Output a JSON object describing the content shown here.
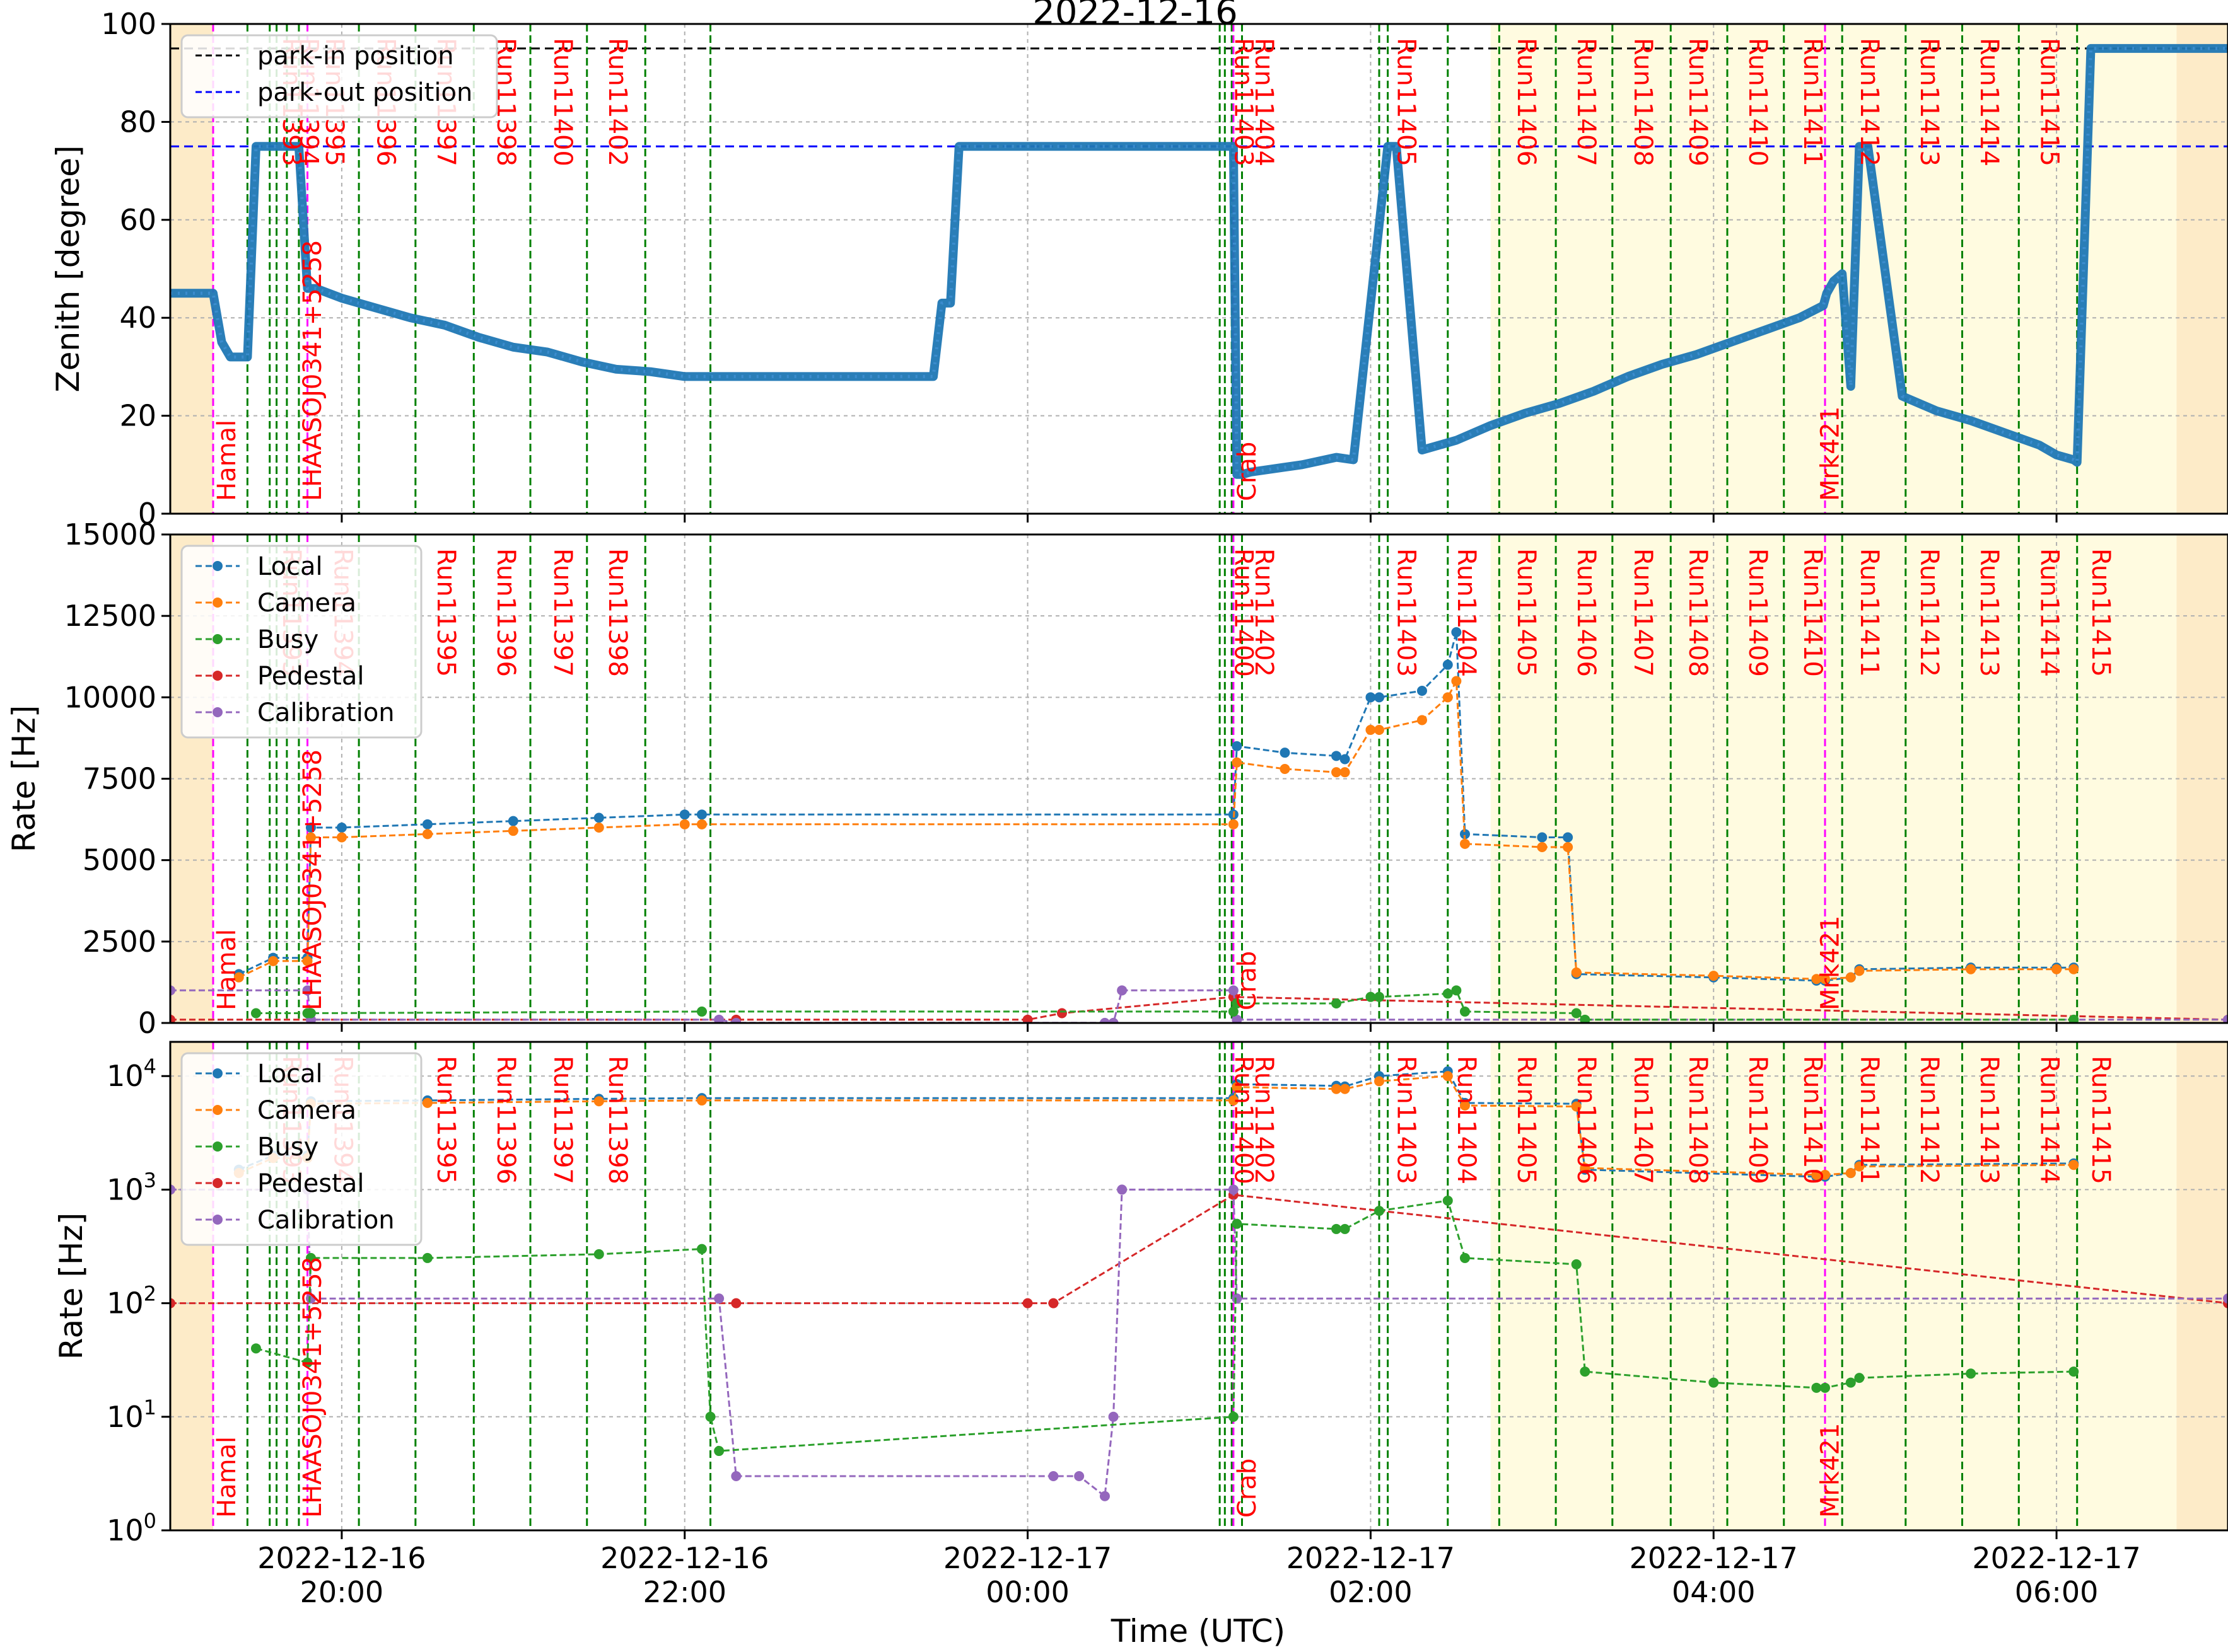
{
  "figure": {
    "title": "2022-12-16",
    "xlabel": "Time (UTC)",
    "xticks": [
      {
        "t": 20.0,
        "line1": "2022-12-16",
        "line2": "20:00"
      },
      {
        "t": 22.0,
        "line1": "2022-12-16",
        "line2": "22:00"
      },
      {
        "t": 24.0,
        "line1": "2022-12-17",
        "line2": "00:00"
      },
      {
        "t": 26.0,
        "line1": "2022-12-17",
        "line2": "02:00"
      },
      {
        "t": 28.0,
        "line1": "2022-12-17",
        "line2": "04:00"
      },
      {
        "t": 30.0,
        "line1": "2022-12-17",
        "line2": "06:00"
      }
    ],
    "colors": {
      "local": "#1f77b4",
      "camera": "#ff7f0e",
      "busy": "#2ca02c",
      "pedestal": "#d62728",
      "calibration": "#9467bd",
      "park_in": "#000000",
      "park_out": "#0000ff",
      "run_line": "#008000",
      "source_line": "#ff00ff",
      "run_label": "#ff0000",
      "night_shade": "#fdebc8",
      "moon_shade": "#fffbe0"
    }
  },
  "chart_data": [
    {
      "type": "line",
      "panel": "zenith",
      "ylabel": "Zenith [degree]",
      "ylim": [
        0,
        100
      ],
      "yticks": [
        "0",
        "20",
        "40",
        "60",
        "80",
        "100"
      ],
      "xlim": [
        19.0,
        31.0
      ],
      "grid": true,
      "legend": {
        "placement": "top-left",
        "entries": [
          "park-in position",
          "park-out position"
        ]
      },
      "hlines": [
        {
          "name": "park-in position",
          "y": 95
        },
        {
          "name": "park-out position",
          "y": 75
        }
      ],
      "run_labels": [
        "Run11393",
        "Run11394",
        "Run11395",
        "Run11396",
        "Run11397",
        "Run11398",
        "Run11400",
        "Run11402",
        "Run11403",
        "Run11404",
        "Run11405",
        "Run11406",
        "Run11407",
        "Run11408",
        "Run11409",
        "Run11410",
        "Run11411",
        "Run11412",
        "Run11413",
        "Run11414",
        "Run11415"
      ],
      "source_labels": [
        "Hamal",
        "LHAASOJ0341+5258",
        "Crab",
        "Mrk421"
      ],
      "series": [
        {
          "x": [
            19.0,
            19.25,
            19.3,
            19.35,
            19.45,
            19.5,
            19.55,
            19.7,
            19.75,
            19.8,
            19.85,
            20.0,
            20.2,
            20.4,
            20.6,
            20.8,
            21.0,
            21.2,
            21.4,
            21.6,
            21.8,
            22.0,
            22.5,
            23.0,
            23.45,
            23.5,
            23.55,
            23.6,
            23.65,
            24.0,
            24.5,
            25.0,
            25.2,
            25.22,
            25.25,
            25.3,
            25.6,
            25.8,
            25.9,
            26.1,
            26.15,
            26.3,
            26.5,
            26.7,
            26.9,
            27.1,
            27.3,
            27.5,
            27.7,
            27.9,
            28.1,
            28.3,
            28.5,
            28.64,
            28.66,
            28.7,
            28.75,
            28.8,
            28.85,
            28.9,
            29.1,
            29.3,
            29.5,
            29.7,
            29.9,
            30.0,
            30.1,
            30.12,
            30.2,
            31.0
          ],
          "y": [
            45,
            45,
            35,
            32,
            32,
            75,
            75,
            75,
            75,
            46,
            46,
            44,
            42,
            40,
            38.5,
            36,
            34,
            33,
            31,
            29.5,
            29,
            28,
            28,
            28,
            28,
            43,
            43,
            75,
            75,
            75,
            75,
            75,
            75,
            8,
            8,
            8.5,
            10,
            11.5,
            11,
            75,
            75,
            13,
            15,
            18,
            20.5,
            22.5,
            25,
            28,
            30.5,
            32.5,
            35,
            37.5,
            40,
            42.5,
            45,
            47.5,
            49,
            26,
            75,
            75,
            24,
            21,
            19,
            16.5,
            14,
            12,
            11,
            10.5,
            95,
            95
          ]
        }
      ]
    },
    {
      "type": "line",
      "panel": "rate-linear",
      "ylabel": "Rate [Hz]",
      "ylim": [
        0,
        15000
      ],
      "yticks": [
        "0",
        "2500",
        "5000",
        "7500",
        "10000",
        "12500",
        "15000"
      ],
      "xlim": [
        19.0,
        31.0
      ],
      "grid": true,
      "legend": {
        "placement": "top-left",
        "entries": [
          "Local",
          "Camera",
          "Busy",
          "Pedestal",
          "Calibration"
        ]
      },
      "run_labels": [
        "Run11393",
        "Run11394",
        "Run11395",
        "Run11396",
        "Run11397",
        "Run11398",
        "Run11400",
        "Run11402",
        "Run11403",
        "Run11404",
        "Run11405",
        "Run11406",
        "Run11407",
        "Run11408",
        "Run11409",
        "Run11410",
        "Run11411",
        "Run11412",
        "Run11413",
        "Run11414",
        "Run11415"
      ],
      "source_labels": [
        "Hamal",
        "LHAASOJ0341+5258",
        "Crab",
        "Mrk421"
      ],
      "series": [
        {
          "name": "Local",
          "x": [
            19.4,
            19.6,
            19.8,
            19.82,
            20.0,
            20.5,
            21.0,
            21.5,
            22.0,
            22.1,
            25.2,
            25.22,
            25.5,
            25.8,
            25.85,
            26.0,
            26.05,
            26.3,
            26.45,
            26.5,
            26.55,
            27.0,
            27.15,
            27.2,
            28.0,
            28.6,
            28.65,
            28.8,
            28.85,
            29.5,
            30.0,
            30.1
          ],
          "y": [
            1500,
            2000,
            2000,
            6000,
            6000,
            6100,
            6200,
            6300,
            6400,
            6400,
            6400,
            8500,
            8300,
            8200,
            8100,
            10000,
            10000,
            10200,
            11000,
            12000,
            5800,
            5700,
            5700,
            1500,
            1400,
            1300,
            1300,
            1400,
            1650,
            1700,
            1700,
            1700
          ]
        },
        {
          "name": "Camera",
          "x": [
            19.4,
            19.6,
            19.8,
            19.82,
            20.0,
            20.5,
            21.0,
            21.5,
            22.0,
            22.1,
            25.2,
            25.22,
            25.5,
            25.8,
            25.85,
            26.0,
            26.05,
            26.3,
            26.45,
            26.5,
            26.55,
            27.0,
            27.15,
            27.2,
            28.0,
            28.6,
            28.65,
            28.8,
            28.85,
            29.5,
            30.0,
            30.1
          ],
          "y": [
            1400,
            1900,
            1900,
            5700,
            5700,
            5800,
            5900,
            6000,
            6100,
            6100,
            6100,
            8000,
            7800,
            7700,
            7700,
            9000,
            9000,
            9300,
            10000,
            10500,
            5500,
            5400,
            5400,
            1550,
            1450,
            1350,
            1350,
            1400,
            1600,
            1650,
            1650,
            1650
          ]
        },
        {
          "name": "Busy",
          "x": [
            19.5,
            19.8,
            19.82,
            22.1,
            25.2,
            25.22,
            25.8,
            26.0,
            26.05,
            26.45,
            26.5,
            26.55,
            27.2,
            27.25,
            30.1
          ],
          "y": [
            300,
            300,
            300,
            350,
            350,
            600,
            600,
            800,
            800,
            900,
            1000,
            350,
            300,
            100,
            100
          ]
        },
        {
          "name": "Pedestal",
          "x": [
            19.0,
            22.3,
            24.0,
            24.2,
            25.2,
            31.0
          ],
          "y": [
            100,
            100,
            100,
            300,
            800,
            100
          ]
        },
        {
          "name": "Calibration",
          "x": [
            19.0,
            19.8,
            19.82,
            22.2,
            22.3,
            24.45,
            24.5,
            24.55,
            25.2,
            25.22,
            31.0
          ],
          "y": [
            1000,
            1000,
            100,
            100,
            3,
            3,
            3,
            1000,
            1000,
            100,
            100
          ]
        }
      ]
    },
    {
      "type": "line",
      "panel": "rate-log",
      "ylabel": "Rate [Hz]",
      "yscale": "log",
      "ylim": [
        1,
        20000
      ],
      "yticks": [
        {
          "base": "10",
          "exp": "0"
        },
        {
          "base": "10",
          "exp": "1"
        },
        {
          "base": "10",
          "exp": "2"
        },
        {
          "base": "10",
          "exp": "3"
        },
        {
          "base": "10",
          "exp": "4"
        }
      ],
      "xlim": [
        19.0,
        31.0
      ],
      "grid": true,
      "legend": {
        "placement": "top-left",
        "entries": [
          "Local",
          "Camera",
          "Busy",
          "Pedestal",
          "Calibration"
        ]
      },
      "run_labels": [
        "Run11393",
        "Run11394",
        "Run11395",
        "Run11396",
        "Run11397",
        "Run11398",
        "Run11400",
        "Run11402",
        "Run11403",
        "Run11404",
        "Run11405",
        "Run11406",
        "Run11407",
        "Run11408",
        "Run11409",
        "Run11410",
        "Run11411",
        "Run11412",
        "Run11413",
        "Run11414",
        "Run11415"
      ],
      "source_labels": [
        "Hamal",
        "LHAASOJ0341+5258",
        "Crab",
        "Mrk421"
      ],
      "series": [
        {
          "name": "Local",
          "x": [
            19.4,
            19.6,
            19.8,
            19.82,
            20.5,
            21.5,
            22.1,
            25.2,
            25.22,
            25.8,
            25.85,
            26.05,
            26.45,
            26.55,
            27.2,
            27.25,
            28.6,
            28.65,
            28.8,
            28.85,
            30.1
          ],
          "y": [
            1500,
            2000,
            2000,
            6000,
            6100,
            6300,
            6400,
            6400,
            8500,
            8200,
            8100,
            10000,
            11000,
            5800,
            5700,
            1500,
            1300,
            1300,
            1400,
            1650,
            1700
          ]
        },
        {
          "name": "Camera",
          "x": [
            19.4,
            19.6,
            19.8,
            19.82,
            20.5,
            21.5,
            22.1,
            25.2,
            25.22,
            25.8,
            25.85,
            26.05,
            26.45,
            26.55,
            27.2,
            27.25,
            28.6,
            28.65,
            28.8,
            28.85,
            30.1
          ],
          "y": [
            1400,
            1900,
            1900,
            5700,
            5800,
            6000,
            6100,
            6100,
            8000,
            7700,
            7700,
            9000,
            10000,
            5500,
            5400,
            1550,
            1350,
            1350,
            1400,
            1600,
            1650
          ]
        },
        {
          "name": "Busy",
          "x": [
            19.5,
            19.8,
            19.82,
            20.5,
            21.5,
            22.1,
            22.15,
            22.2,
            25.2,
            25.22,
            25.8,
            25.85,
            26.05,
            26.45,
            26.55,
            27.2,
            27.25,
            28.0,
            28.6,
            28.65,
            28.8,
            28.85,
            29.5,
            30.1
          ],
          "y": [
            40,
            30,
            250,
            250,
            270,
            300,
            10,
            5,
            10,
            500,
            450,
            450,
            650,
            800,
            250,
            220,
            25,
            20,
            18,
            18,
            20,
            22,
            24,
            25
          ]
        },
        {
          "name": "Pedestal",
          "x": [
            19.0,
            22.3,
            24.0,
            24.15,
            25.2,
            31.0
          ],
          "y": [
            100,
            100,
            100,
            100,
            900,
            100
          ]
        },
        {
          "name": "Calibration",
          "x": [
            19.0,
            19.8,
            19.82,
            22.2,
            22.3,
            24.15,
            24.3,
            24.45,
            24.5,
            24.55,
            25.2,
            25.22,
            31.0
          ],
          "y": [
            1000,
            1000,
            110,
            110,
            3,
            3,
            3,
            2,
            10,
            1000,
            1000,
            110,
            110
          ]
        }
      ]
    }
  ],
  "annotations": {
    "run_lines": [
      19.45,
      19.58,
      19.62,
      19.68,
      19.75,
      20.1,
      20.43,
      20.77,
      21.1,
      21.43,
      21.77,
      22.15,
      25.12,
      25.15,
      25.19,
      25.25,
      26.05,
      26.1,
      26.45,
      26.75,
      27.08,
      27.41,
      27.75,
      28.08,
      28.41,
      28.75,
      29.12,
      29.45,
      29.78,
      30.12
    ],
    "source_lines": [
      19.25,
      19.8,
      25.2,
      28.65
    ],
    "shade_regions": [
      {
        "kind": "night",
        "x0": 19.0,
        "x1": 19.25
      },
      {
        "kind": "moon",
        "x0": 26.7,
        "x1": 30.7
      },
      {
        "kind": "night",
        "x0": 30.7,
        "x1": 31.0
      }
    ],
    "zenith_run_positions": [
      19.6,
      19.7,
      19.85,
      20.15,
      20.5,
      20.85,
      21.18,
      21.5,
      25.15,
      25.27,
      26.1,
      26.8,
      27.15,
      27.48,
      27.8,
      28.15,
      28.47,
      28.8,
      29.15,
      29.5,
      29.85
    ],
    "rate_run_positions": [
      19.6,
      19.9,
      20.5,
      20.85,
      21.18,
      21.5,
      25.15,
      25.27,
      26.1,
      26.45,
      26.8,
      27.15,
      27.48,
      27.8,
      28.15,
      28.47,
      28.8,
      29.15,
      29.5,
      29.85,
      30.15
    ],
    "source_positions": [
      19.32,
      19.82,
      25.27,
      28.67
    ]
  }
}
